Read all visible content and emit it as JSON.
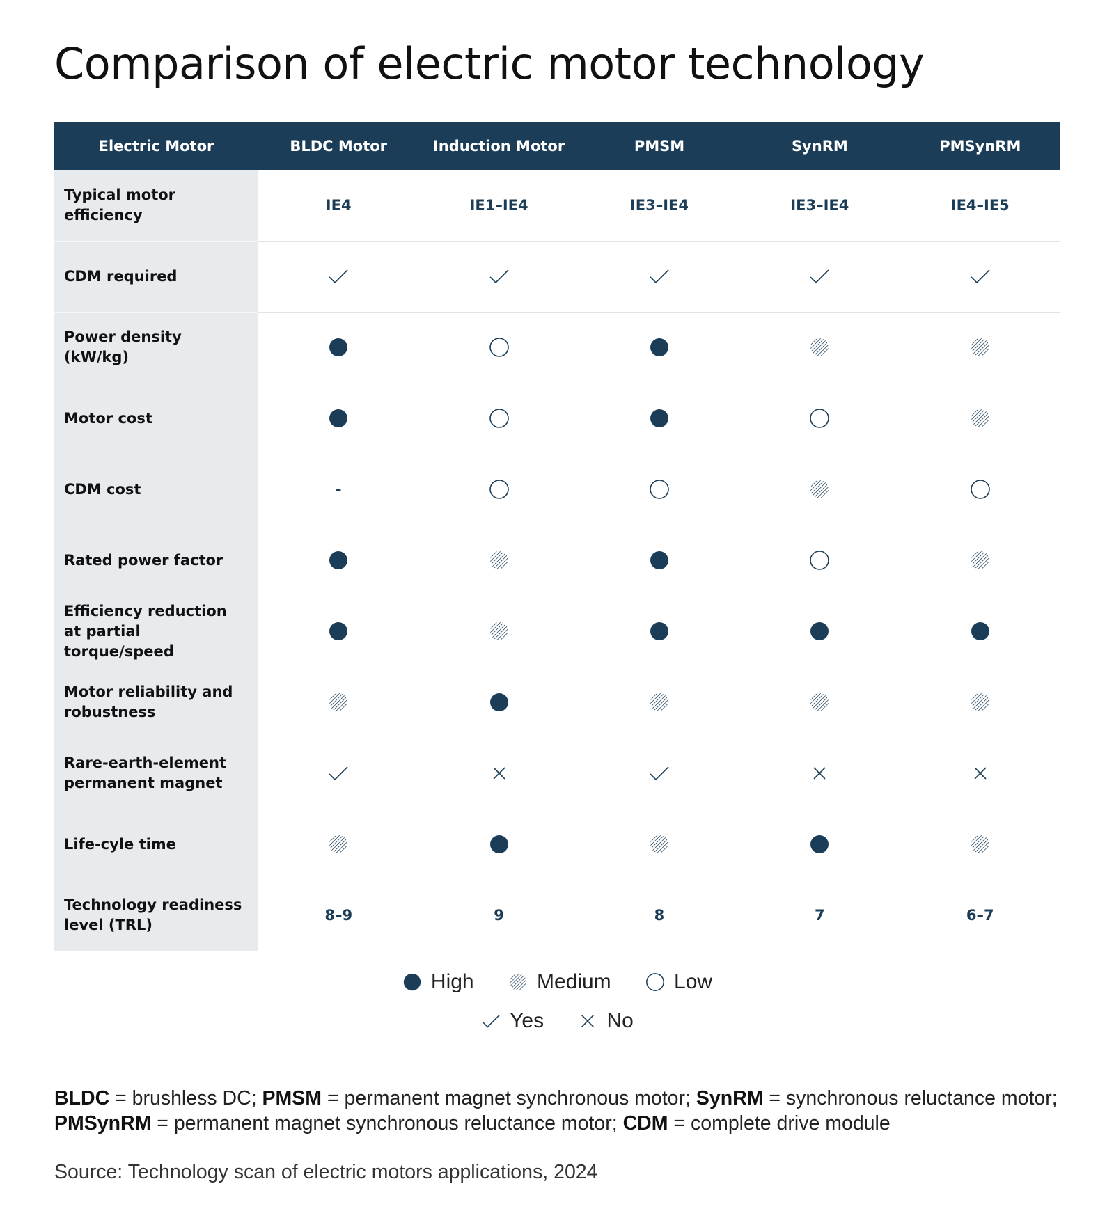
{
  "title": "Comparison of electric motor technology",
  "table": {
    "header": [
      "Electric Motor",
      "BLDC Motor",
      "Induction Motor",
      "PMSM",
      "SynRM",
      "PMSynRM"
    ],
    "rows": [
      {
        "label": "Typical motor efficiency",
        "cells": [
          {
            "kind": "text",
            "text": "IE4"
          },
          {
            "kind": "text",
            "text": "IE1–IE4"
          },
          {
            "kind": "text",
            "text": "IE3–IE4"
          },
          {
            "kind": "text",
            "text": "IE3–IE4"
          },
          {
            "kind": "text",
            "text": "IE4–IE5"
          }
        ]
      },
      {
        "label": "CDM required",
        "cells": [
          {
            "kind": "yes"
          },
          {
            "kind": "yes"
          },
          {
            "kind": "yes"
          },
          {
            "kind": "yes"
          },
          {
            "kind": "yes"
          }
        ]
      },
      {
        "label": "Power density (kW/kg)",
        "cells": [
          {
            "kind": "high"
          },
          {
            "kind": "low"
          },
          {
            "kind": "high"
          },
          {
            "kind": "medium"
          },
          {
            "kind": "medium"
          }
        ]
      },
      {
        "label": "Motor cost",
        "cells": [
          {
            "kind": "high"
          },
          {
            "kind": "low"
          },
          {
            "kind": "high"
          },
          {
            "kind": "low"
          },
          {
            "kind": "medium"
          }
        ]
      },
      {
        "label": "CDM cost",
        "cells": [
          {
            "kind": "text",
            "text": "-"
          },
          {
            "kind": "low"
          },
          {
            "kind": "low"
          },
          {
            "kind": "medium"
          },
          {
            "kind": "low"
          }
        ]
      },
      {
        "label": "Rated power factor",
        "cells": [
          {
            "kind": "high"
          },
          {
            "kind": "medium"
          },
          {
            "kind": "high"
          },
          {
            "kind": "low"
          },
          {
            "kind": "medium"
          }
        ]
      },
      {
        "label": "Efficiency reduction at partial torque/speed",
        "cells": [
          {
            "kind": "high"
          },
          {
            "kind": "medium"
          },
          {
            "kind": "high"
          },
          {
            "kind": "high"
          },
          {
            "kind": "high"
          }
        ]
      },
      {
        "label": "Motor reliability and robustness",
        "cells": [
          {
            "kind": "medium"
          },
          {
            "kind": "high"
          },
          {
            "kind": "medium"
          },
          {
            "kind": "medium"
          },
          {
            "kind": "medium"
          }
        ]
      },
      {
        "label": "Rare-earth-element permanent magnet",
        "cells": [
          {
            "kind": "yes"
          },
          {
            "kind": "no"
          },
          {
            "kind": "yes"
          },
          {
            "kind": "no"
          },
          {
            "kind": "no"
          }
        ]
      },
      {
        "label": "Life-cyle time",
        "cells": [
          {
            "kind": "medium"
          },
          {
            "kind": "high"
          },
          {
            "kind": "medium"
          },
          {
            "kind": "high"
          },
          {
            "kind": "medium"
          }
        ]
      },
      {
        "label": "Technology readiness level (TRL)",
        "cells": [
          {
            "kind": "text",
            "text": "8–9"
          },
          {
            "kind": "text",
            "text": "9"
          },
          {
            "kind": "text",
            "text": "8"
          },
          {
            "kind": "text",
            "text": "7"
          },
          {
            "kind": "text",
            "text": "6–7"
          }
        ]
      }
    ]
  },
  "legend": {
    "high": "High",
    "medium": "Medium",
    "low": "Low",
    "yes": "Yes",
    "no": "No"
  },
  "footnote": [
    {
      "bold": "BLDC",
      "text": " = brushless DC; "
    },
    {
      "bold": "PMSM",
      "text": " = permanent magnet synchronous motor; "
    },
    {
      "bold": "SynRM",
      "text": " = synchronous reluctance motor; "
    },
    {
      "bold": "PMSynRM",
      "text": " = permanent magnet synchronous reluctance motor; "
    },
    {
      "bold": "CDM",
      "text": " = complete drive module"
    }
  ],
  "source": "Source: Technology scan of electric motors applications, 2024",
  "colors": {
    "navy": "#1b3d57",
    "label_bg": "#e7ebed"
  }
}
